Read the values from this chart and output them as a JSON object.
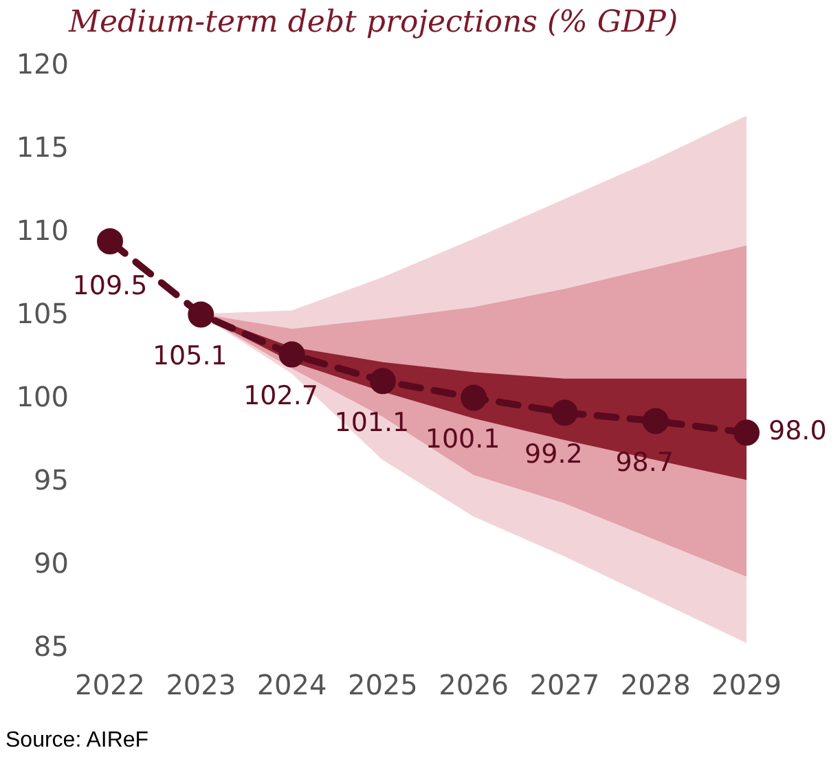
{
  "chart_data": {
    "type": "line",
    "title": "Medium-term debt projections (% GDP)",
    "categories": [
      "2022",
      "2023",
      "2024",
      "2025",
      "2026",
      "2027",
      "2028",
      "2029"
    ],
    "series": [
      {
        "type": "area",
        "color": "#f2d4d8",
        "values": [
          null,
          null,
          null,
          null,
          null,
          null,
          null,
          null
        ],
        "upper": [
          null,
          105.1,
          105.3,
          107.3,
          109.6,
          112.0,
          114.4,
          117.0
        ],
        "lower": [
          null,
          105.1,
          101.6,
          96.4,
          93.0,
          90.6,
          88.0,
          85.4
        ]
      },
      {
        "type": "area",
        "color": "#e3a1a9",
        "values": [
          null,
          null,
          null,
          null,
          null,
          null,
          null,
          null
        ],
        "upper": [
          null,
          105.1,
          104.2,
          104.8,
          105.5,
          106.6,
          107.9,
          109.2
        ],
        "lower": [
          null,
          105.1,
          101.9,
          99.0,
          95.5,
          93.8,
          91.6,
          89.4
        ]
      },
      {
        "type": "area",
        "color": "#8f2332",
        "values": [
          null,
          null,
          null,
          null,
          null,
          null,
          null,
          null
        ],
        "upper": [
          null,
          105.1,
          103.1,
          102.2,
          101.6,
          101.2,
          101.2,
          101.2
        ],
        "lower": [
          null,
          105.1,
          102.3,
          100.5,
          98.9,
          97.6,
          96.4,
          95.2
        ]
      },
      {
        "type": "line",
        "marker": "circle",
        "line_style": "dashed",
        "color": "#5a0a1e",
        "values": [
          109.5,
          105.1,
          102.7,
          101.1,
          100.1,
          99.2,
          98.7,
          98.0
        ],
        "value_labels": [
          "109.5",
          "105.1",
          "102.7",
          "101.1",
          "100.1",
          "99.2",
          "98.7",
          "98.0"
        ]
      }
    ],
    "ylim": [
      85,
      120
    ],
    "yticks": [
      85,
      90,
      95,
      100,
      105,
      110,
      115,
      120
    ],
    "grid": false,
    "legend": false,
    "annotations": [
      "Source: AIReF"
    ]
  }
}
